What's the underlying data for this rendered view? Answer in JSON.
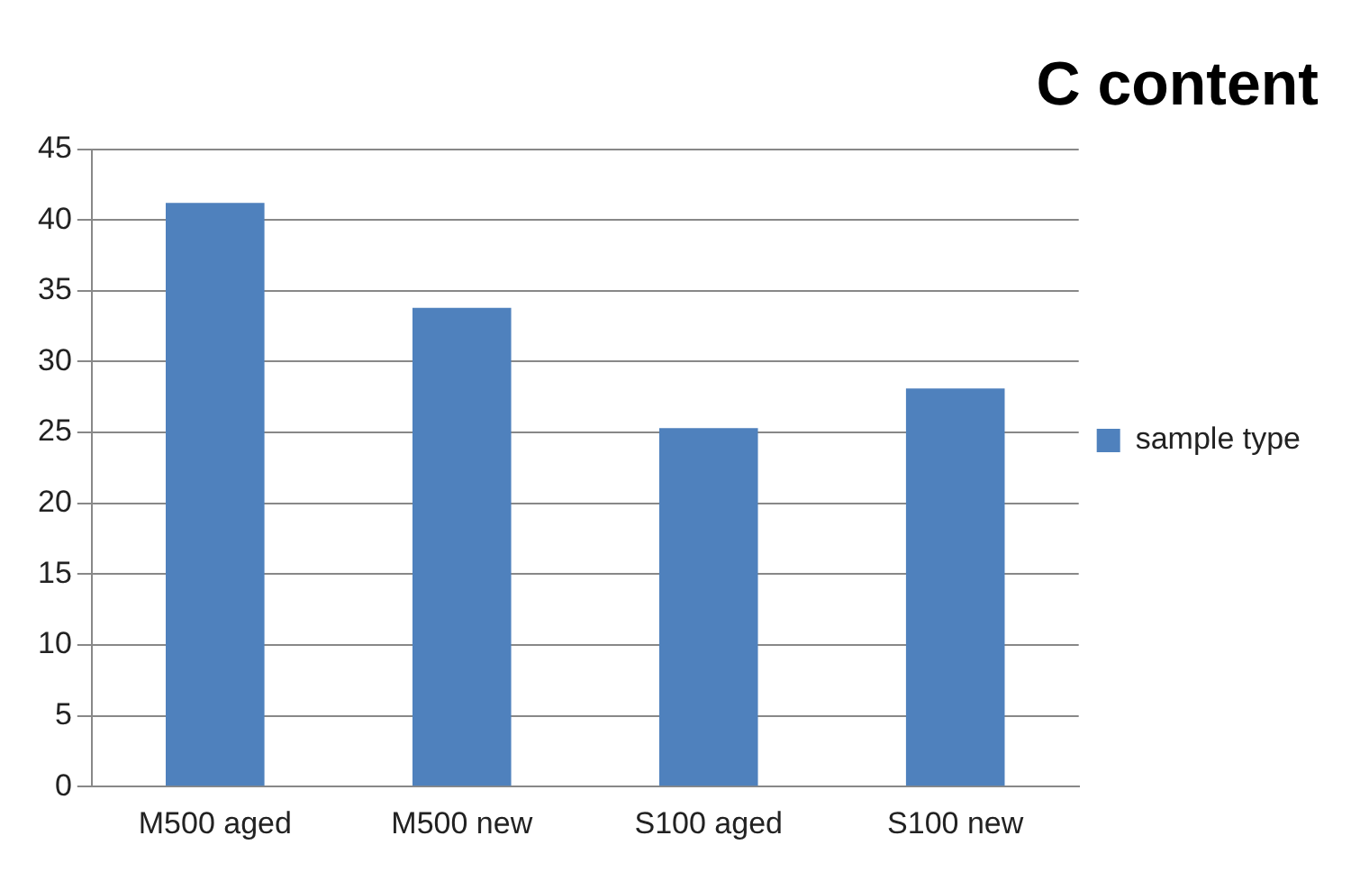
{
  "chart_data": {
    "type": "bar",
    "title": "C content",
    "categories": [
      "M500 aged",
      "M500 new",
      "S100 aged",
      "S100 new"
    ],
    "series": [
      {
        "name": "sample type",
        "color": "#4f81bd",
        "values": [
          41.2,
          33.8,
          25.3,
          28.1
        ]
      }
    ],
    "ylim": [
      0,
      45
    ],
    "yticks": [
      0,
      5,
      10,
      15,
      20,
      25,
      30,
      35,
      40,
      45
    ],
    "grid": "y",
    "legend": "right"
  }
}
